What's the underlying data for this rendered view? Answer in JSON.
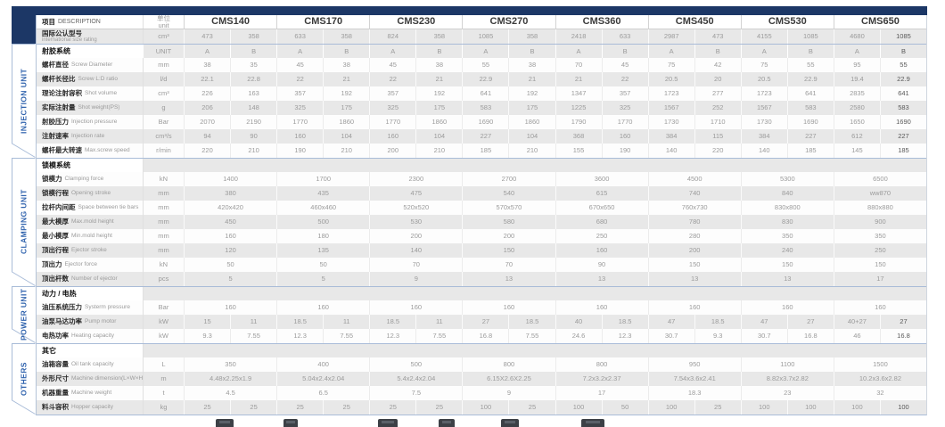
{
  "colors": {
    "navy_band": "#1c3766",
    "sidebar_blue": "#2f62ad",
    "stripe_gray": "#e8e8e8",
    "value_text": "#9b9b9b",
    "section_line": "#a9bcd8"
  },
  "table": {
    "col_headers": {
      "description": {
        "zh": "项目",
        "en": "DESCRIPTION"
      },
      "unit": {
        "zh": "单位",
        "en": "unit"
      },
      "models": [
        "CMS140",
        "CMS170",
        "CMS230",
        "CMS270",
        "CMS360",
        "CMS450",
        "CMS530",
        "CMS650"
      ]
    },
    "size_rating": {
      "label_zh": "国际公认型号",
      "label_en": "international size rating",
      "unit": "cm³",
      "type": "ab",
      "values": [
        [
          "473",
          "358"
        ],
        [
          "633",
          "358"
        ],
        [
          "824",
          "358"
        ],
        [
          "1085",
          "358"
        ],
        [
          "2418",
          "633"
        ],
        [
          "2987",
          "473"
        ],
        [
          "4155",
          "1085"
        ],
        [
          "4680",
          "1085"
        ]
      ]
    },
    "sections": [
      {
        "id": "injection",
        "sidebar_label": "INJECTION UNIT",
        "header": {
          "label_zh": "射胶系统",
          "unit": "UNIT",
          "type": "ab",
          "values": [
            [
              "A",
              "B"
            ],
            [
              "A",
              "B"
            ],
            [
              "A",
              "B"
            ],
            [
              "A",
              "B"
            ],
            [
              "A",
              "B"
            ],
            [
              "A",
              "B"
            ],
            [
              "A",
              "B"
            ],
            [
              "A",
              "B"
            ]
          ]
        },
        "rows": [
          {
            "label_zh": "螺杆直径",
            "label_en": "Screw Diameter",
            "unit": "mm",
            "type": "ab",
            "values": [
              [
                "38",
                "35"
              ],
              [
                "45",
                "38"
              ],
              [
                "45",
                "38"
              ],
              [
                "55",
                "38"
              ],
              [
                "70",
                "45"
              ],
              [
                "75",
                "42"
              ],
              [
                "75",
                "55"
              ],
              [
                "95",
                "55"
              ]
            ]
          },
          {
            "label_zh": "螺杆长径比",
            "label_en": "Screw L:D ratio",
            "unit": "l/d",
            "type": "ab",
            "values": [
              [
                "22.1",
                "22.8"
              ],
              [
                "22",
                "21"
              ],
              [
                "22",
                "21"
              ],
              [
                "22.9",
                "21"
              ],
              [
                "21",
                "22"
              ],
              [
                "20.5",
                "20"
              ],
              [
                "20.5",
                "22.9"
              ],
              [
                "19.4",
                "22.9"
              ]
            ]
          },
          {
            "label_zh": "理论注射容积",
            "label_en": "Shot volume",
            "unit": "cm³",
            "type": "ab",
            "values": [
              [
                "226",
                "163"
              ],
              [
                "357",
                "192"
              ],
              [
                "357",
                "192"
              ],
              [
                "641",
                "192"
              ],
              [
                "1347",
                "357"
              ],
              [
                "1723",
                "277"
              ],
              [
                "1723",
                "641"
              ],
              [
                "2835",
                "641"
              ]
            ]
          },
          {
            "label_zh": "实际注射量",
            "label_en": "Shot weight(PS)",
            "unit": "g",
            "type": "ab",
            "values": [
              [
                "206",
                "148"
              ],
              [
                "325",
                "175"
              ],
              [
                "325",
                "175"
              ],
              [
                "583",
                "175"
              ],
              [
                "1225",
                "325"
              ],
              [
                "1567",
                "252"
              ],
              [
                "1567",
                "583"
              ],
              [
                "2580",
                "583"
              ]
            ]
          },
          {
            "label_zh": "射胶压力",
            "label_en": "Injection pressure",
            "unit": "Bar",
            "type": "ab",
            "values": [
              [
                "2070",
                "2190"
              ],
              [
                "1770",
                "1860"
              ],
              [
                "1770",
                "1860"
              ],
              [
                "1690",
                "1860"
              ],
              [
                "1790",
                "1770"
              ],
              [
                "1730",
                "1710"
              ],
              [
                "1730",
                "1690"
              ],
              [
                "1650",
                "1690"
              ]
            ]
          },
          {
            "label_zh": "注射速率",
            "label_en": "Injection rate",
            "unit": "cm³/s",
            "type": "ab",
            "values": [
              [
                "94",
                "90"
              ],
              [
                "160",
                "104"
              ],
              [
                "160",
                "104"
              ],
              [
                "227",
                "104"
              ],
              [
                "368",
                "160"
              ],
              [
                "384",
                "115"
              ],
              [
                "384",
                "227"
              ],
              [
                "612",
                "227"
              ]
            ]
          },
          {
            "label_zh": "螺杆最大转速",
            "label_en": "Max.screw speed",
            "unit": "r/min",
            "type": "ab",
            "values": [
              [
                "220",
                "210"
              ],
              [
                "190",
                "210"
              ],
              [
                "200",
                "210"
              ],
              [
                "185",
                "210"
              ],
              [
                "155",
                "190"
              ],
              [
                "140",
                "220"
              ],
              [
                "140",
                "185"
              ],
              [
                "145",
                "185"
              ]
            ]
          }
        ]
      },
      {
        "id": "clamping",
        "sidebar_label": "CLAMPING UNIT",
        "header": {
          "label_zh": "锁模系统",
          "unit": "",
          "type": "blank"
        },
        "rows": [
          {
            "label_zh": "锁模力",
            "label_en": "Clamping force",
            "unit": "kN",
            "type": "merged",
            "values": [
              "1400",
              "1700",
              "2300",
              "2700",
              "3600",
              "4500",
              "5300",
              "6500"
            ]
          },
          {
            "label_zh": "锁模行程",
            "label_en": "Opening stroke",
            "unit": "mm",
            "type": "merged",
            "values": [
              "380",
              "435",
              "475",
              "540",
              "615",
              "740",
              "840",
              "ww870"
            ]
          },
          {
            "label_zh": "拉杆内间距",
            "label_en": "Space between tie bars",
            "unit": "mm",
            "type": "merged",
            "values": [
              "420x420",
              "460x460",
              "520x520",
              "570x570",
              "670x650",
              "760x730",
              "830x800",
              "880x880"
            ]
          },
          {
            "label_zh": "最大模厚",
            "label_en": "Max.mold height",
            "unit": "mm",
            "type": "merged",
            "values": [
              "450",
              "500",
              "530",
              "580",
              "680",
              "780",
              "830",
              "900"
            ]
          },
          {
            "label_zh": "最小模厚",
            "label_en": "Min.mold height",
            "unit": "mm",
            "type": "merged",
            "values": [
              "160",
              "180",
              "200",
              "200",
              "250",
              "280",
              "350",
              "350"
            ]
          },
          {
            "label_zh": "顶出行程",
            "label_en": "Ejector stroke",
            "unit": "mm",
            "type": "merged",
            "values": [
              "120",
              "135",
              "140",
              "150",
              "160",
              "200",
              "240",
              "250"
            ]
          },
          {
            "label_zh": "顶出力",
            "label_en": "Ejector force",
            "unit": "kN",
            "type": "merged",
            "values": [
              "50",
              "50",
              "70",
              "70",
              "90",
              "150",
              "150",
              "150"
            ]
          },
          {
            "label_zh": "顶出杆数",
            "label_en": "Number of ejector",
            "unit": "pcs",
            "type": "merged",
            "values": [
              "5",
              "5",
              "9",
              "13",
              "13",
              "13",
              "13",
              "17"
            ]
          }
        ]
      },
      {
        "id": "power",
        "sidebar_label": "POWER UNIT",
        "header": {
          "label_zh": "动力 / 电热",
          "unit": "",
          "type": "blank"
        },
        "rows": [
          {
            "label_zh": "油压系统压力",
            "label_en": "Systerm pressure",
            "unit": "Bar",
            "type": "merged",
            "values": [
              "160",
              "160",
              "160",
              "160",
              "160",
              "160",
              "160",
              "160"
            ]
          },
          {
            "label_zh": "油泵马达功率",
            "label_en": "Pump motor",
            "unit": "kW",
            "type": "ab",
            "values": [
              [
                "15",
                "11"
              ],
              [
                "18.5",
                "11"
              ],
              [
                "18.5",
                "11"
              ],
              [
                "27",
                "18.5"
              ],
              [
                "40",
                "18.5"
              ],
              [
                "47",
                "18.5"
              ],
              [
                "47",
                "27"
              ],
              [
                "40+27",
                "27"
              ]
            ]
          },
          {
            "label_zh": "电热功率",
            "label_en": "Heating capacity",
            "unit": "kW",
            "type": "ab",
            "values": [
              [
                "9.3",
                "7.55"
              ],
              [
                "12.3",
                "7.55"
              ],
              [
                "12.3",
                "7.55"
              ],
              [
                "16.8",
                "7.55"
              ],
              [
                "24.6",
                "12.3"
              ],
              [
                "30.7",
                "9.3"
              ],
              [
                "30.7",
                "16.8"
              ],
              [
                "46",
                "16.8"
              ]
            ]
          }
        ]
      },
      {
        "id": "others",
        "sidebar_label": "OTHERS",
        "header": {
          "label_zh": "其它",
          "unit": "",
          "type": "blank"
        },
        "rows": [
          {
            "label_zh": "油箱容量",
            "label_en": "Oil tank capacity",
            "unit": "L",
            "type": "merged",
            "values": [
              "350",
              "400",
              "500",
              "800",
              "800",
              "950",
              "1100",
              "1500"
            ]
          },
          {
            "label_zh": "外形尺寸",
            "label_en": "Machine dimension(L×W×H)",
            "unit": "m",
            "type": "merged",
            "values": [
              "4.48x2.25x1.9",
              "5.04x2.4x2.04",
              "5.4x2.4x2.04",
              "6.15X2.6X2.25",
              "7.2x3.2x2.37",
              "7.54x3.6x2.41",
              "8.82x3.7x2.82",
              "10.2x3.6x2.82"
            ]
          },
          {
            "label_zh": "机器重量",
            "label_en": "Machine weight",
            "unit": "t",
            "type": "merged",
            "values": [
              "4.5",
              "6.5",
              "7.5",
              "9",
              "17",
              "18.3",
              "23",
              "32"
            ]
          },
          {
            "label_zh": "料斗容积",
            "label_en": "Hopper capacity",
            "unit": "kg",
            "type": "ab",
            "values": [
              [
                "25",
                "25"
              ],
              [
                "25",
                "25"
              ],
              [
                "25",
                "25"
              ],
              [
                "100",
                "25"
              ],
              [
                "100",
                "50"
              ],
              [
                "100",
                "25"
              ],
              [
                "100",
                "100"
              ],
              [
                "100",
                "100"
              ]
            ]
          }
        ]
      }
    ]
  },
  "bottom_thumbnails": {
    "count": 6
  }
}
